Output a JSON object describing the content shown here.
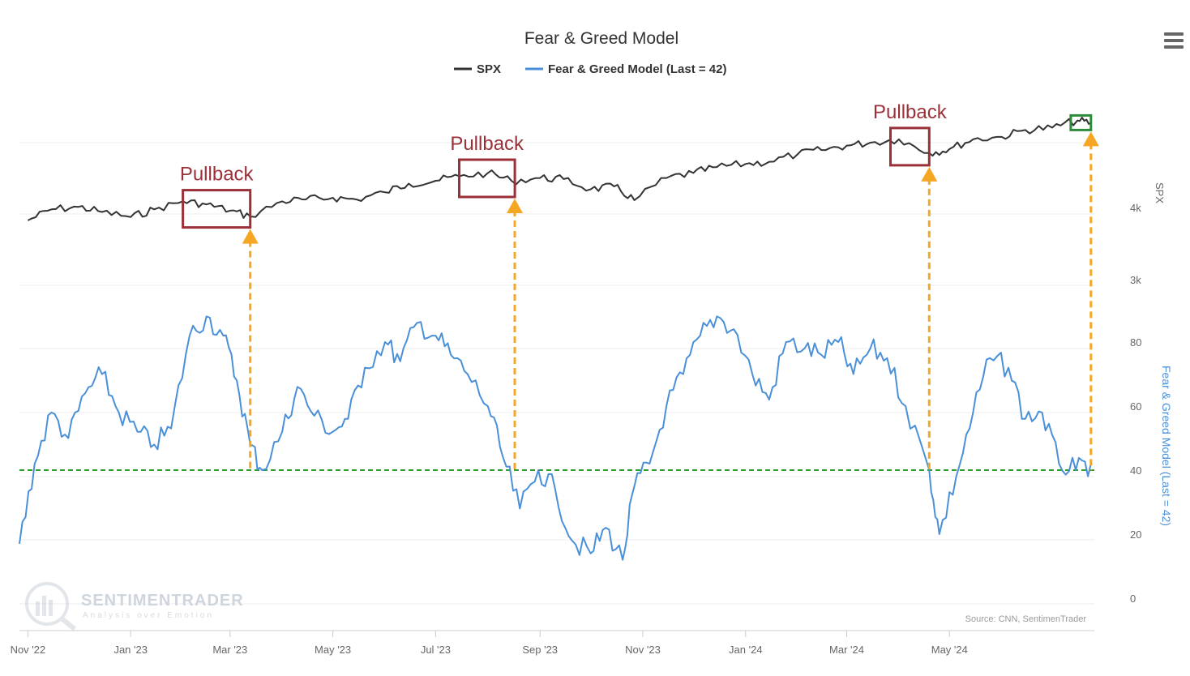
{
  "chart_data": {
    "type": "line",
    "title": "Fear & Greed Model",
    "series": [
      {
        "name": "SPX",
        "color": "#333333",
        "axis": "SPX",
        "x": [
          "2022-11-01",
          "2022-11-15",
          "2022-12-01",
          "2022-12-15",
          "2023-01-01",
          "2023-01-15",
          "2023-02-01",
          "2023-02-15",
          "2023-03-01",
          "2023-03-13",
          "2023-04-01",
          "2023-04-15",
          "2023-05-01",
          "2023-05-15",
          "2023-06-01",
          "2023-06-15",
          "2023-07-01",
          "2023-07-15",
          "2023-08-01",
          "2023-08-15",
          "2023-09-01",
          "2023-09-15",
          "2023-10-01",
          "2023-10-15",
          "2023-10-27",
          "2023-11-15",
          "2023-12-01",
          "2023-12-15",
          "2024-01-01",
          "2024-01-15",
          "2024-02-01",
          "2024-02-15",
          "2024-03-01",
          "2024-03-15",
          "2024-04-01",
          "2024-04-19",
          "2024-05-01",
          "2024-05-15",
          "2024-06-01",
          "2024-06-15",
          "2024-07-01",
          "2024-07-16",
          "2024-07-24"
        ],
        "values": [
          3800,
          3970,
          4010,
          3930,
          3850,
          3970,
          4100,
          4050,
          3950,
          3860,
          4100,
          4130,
          4160,
          4130,
          4250,
          4400,
          4450,
          4530,
          4590,
          4450,
          4500,
          4480,
          4300,
          4350,
          4120,
          4500,
          4590,
          4700,
          4760,
          4800,
          4950,
          5030,
          5120,
          5180,
          5250,
          4970,
          5050,
          5250,
          5300,
          5450,
          5500,
          5660,
          5600
        ]
      },
      {
        "name": "Fear & Greed Model (Last = 42)",
        "color": "#4a90d9",
        "axis": "Fear & Greed Model (Last = 42)",
        "x": [
          "2022-10-27",
          "2022-11-05",
          "2022-11-15",
          "2022-11-25",
          "2022-12-05",
          "2022-12-15",
          "2022-12-25",
          "2023-01-05",
          "2023-01-15",
          "2023-01-25",
          "2023-02-05",
          "2023-02-15",
          "2023-02-25",
          "2023-03-05",
          "2023-03-13",
          "2023-03-20",
          "2023-04-01",
          "2023-04-10",
          "2023-04-20",
          "2023-05-01",
          "2023-05-10",
          "2023-05-20",
          "2023-06-01",
          "2023-06-10",
          "2023-06-20",
          "2023-07-01",
          "2023-07-10",
          "2023-07-20",
          "2023-08-01",
          "2023-08-10",
          "2023-08-20",
          "2023-08-31",
          "2023-09-10",
          "2023-09-20",
          "2023-10-01",
          "2023-10-10",
          "2023-10-20",
          "2023-10-27",
          "2023-11-05",
          "2023-11-15",
          "2023-11-25",
          "2023-12-05",
          "2023-12-15",
          "2023-12-25",
          "2024-01-05",
          "2024-01-15",
          "2024-01-25",
          "2024-02-05",
          "2024-02-15",
          "2024-02-25",
          "2024-03-05",
          "2024-03-15",
          "2024-03-25",
          "2024-04-05",
          "2024-04-19",
          "2024-04-25",
          "2024-05-05",
          "2024-05-15",
          "2024-05-25",
          "2024-06-05",
          "2024-06-15",
          "2024-06-25",
          "2024-07-05",
          "2024-07-15",
          "2024-07-24"
        ],
        "values": [
          17,
          42,
          58,
          50,
          64,
          70,
          58,
          52,
          48,
          53,
          82,
          88,
          82,
          68,
          48,
          40,
          52,
          66,
          57,
          52,
          56,
          72,
          80,
          74,
          86,
          82,
          76,
          70,
          60,
          44,
          28,
          40,
          34,
          18,
          14,
          22,
          12,
          35,
          42,
          60,
          70,
          82,
          88,
          84,
          70,
          62,
          80,
          78,
          76,
          80,
          70,
          78,
          75,
          60,
          40,
          20,
          38,
          58,
          75,
          72,
          56,
          58,
          42,
          40,
          42
        ]
      }
    ],
    "x_ticks": [
      "Nov '22",
      "Jan '23",
      "Mar '23",
      "May '23",
      "Jul '23",
      "Sep '23",
      "Nov '23",
      "Jan '24",
      "Mar '24",
      "May '24"
    ],
    "x_tick_dates": [
      "2022-11-01",
      "2023-01-01",
      "2023-03-01",
      "2023-05-01",
      "2023-07-01",
      "2023-09-01",
      "2023-11-01",
      "2024-01-01",
      "2024-03-01",
      "2024-05-01"
    ],
    "xlim": [
      "2022-10-27",
      "2024-07-26"
    ],
    "yaxis_spx": {
      "label": "SPX",
      "ticks": [
        "3k",
        "4k"
      ],
      "tick_values": [
        3000,
        4000
      ],
      "scale": "log"
    },
    "yaxis_fg": {
      "label": "Fear & Greed Model (Last = 42)",
      "ticks": [
        "0",
        "20",
        "40",
        "60",
        "80"
      ],
      "tick_values": [
        0,
        20,
        40,
        60,
        80
      ],
      "ylim": [
        0,
        100
      ]
    },
    "reference_line": {
      "value": 40,
      "color": "#2e9e2e",
      "style": "dashed"
    },
    "annotations": [
      {
        "text": "Pullback",
        "x_start": "2023-02-01",
        "x_end": "2023-03-13",
        "arrow_date": "2023-03-13"
      },
      {
        "text": "Pullback",
        "x_start": "2023-07-15",
        "x_end": "2023-08-17",
        "arrow_date": "2023-08-17"
      },
      {
        "text": "Pullback",
        "x_start": "2024-03-27",
        "x_end": "2024-04-19",
        "arrow_date": "2024-04-19"
      },
      {
        "text": "",
        "x_start": "2024-07-12",
        "x_end": "2024-07-24",
        "arrow_date": "2024-07-24",
        "box_color": "#2e8b3a"
      }
    ],
    "arrow_color": "#f5a623",
    "callout_color": "#9b3039",
    "legend_position": "top-center",
    "grid": true
  },
  "credit": "Source: CNN, SentimenTrader",
  "watermark": {
    "brand": "SENTIMENTRADER",
    "tagline": "Analysis over Emotion"
  },
  "menu_icon": "hamburger-menu-icon"
}
